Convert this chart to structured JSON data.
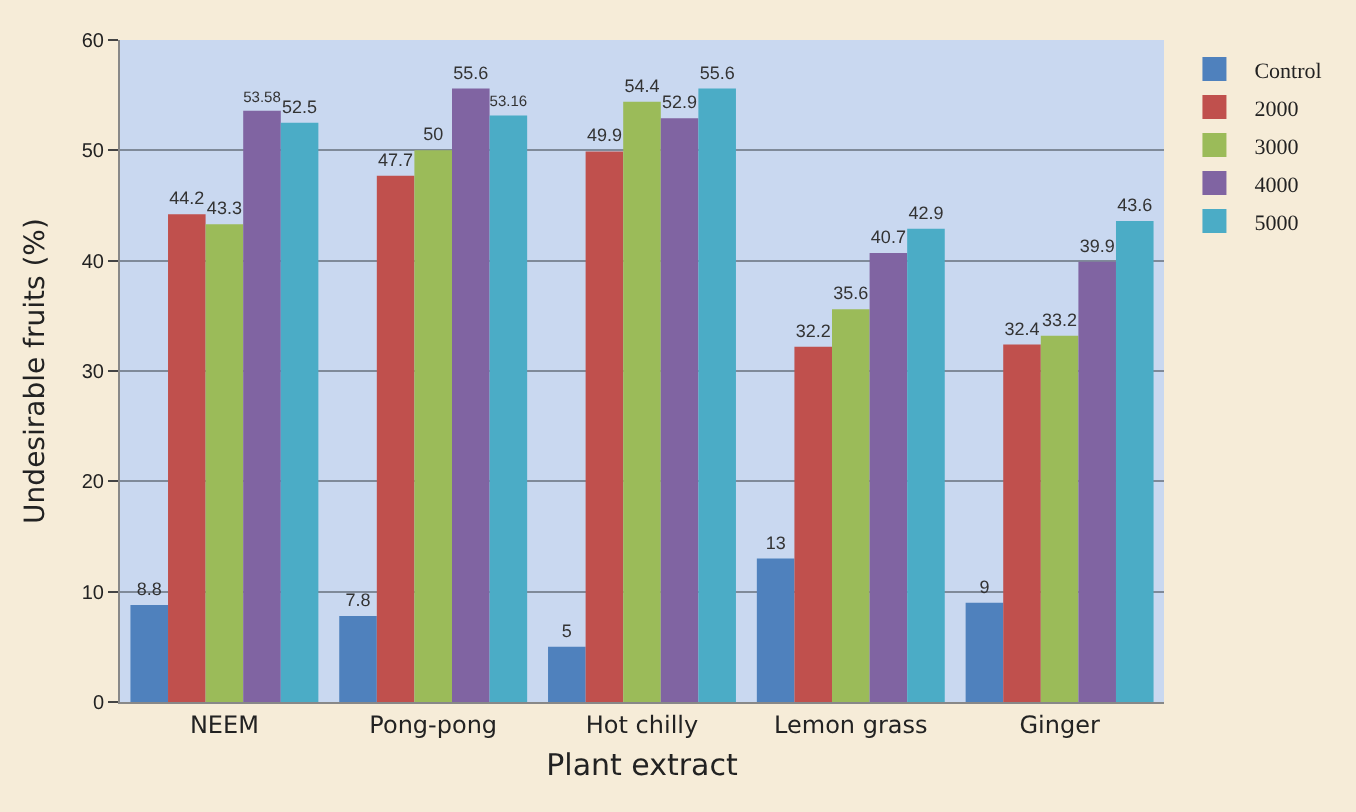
{
  "chart_data": {
    "type": "bar",
    "xlabel": "Plant extract",
    "ylabel": "Undesirable fruits (%)",
    "categories": [
      "NEEM",
      "Pong-pong",
      "Hot chilly",
      "Lemon grass",
      "Ginger"
    ],
    "series": [
      {
        "name": "Control",
        "color": "#4f81bd",
        "values": [
          8.8,
          7.8,
          5,
          13,
          9
        ]
      },
      {
        "name": "2000",
        "color": "#c0504d",
        "values": [
          44.2,
          47.7,
          49.9,
          32.2,
          32.4
        ]
      },
      {
        "name": "3000",
        "color": "#9bbb59",
        "values": [
          43.3,
          50,
          54.4,
          35.6,
          33.2
        ]
      },
      {
        "name": "4000",
        "color": "#8064a2",
        "values": [
          53.58,
          55.6,
          52.9,
          40.7,
          39.9
        ]
      },
      {
        "name": "5000",
        "color": "#4bacc6",
        "values": [
          52.5,
          53.16,
          55.6,
          42.9,
          43.6
        ]
      }
    ],
    "ylim": [
      0,
      60
    ],
    "yticks": [
      0,
      10,
      20,
      30,
      40,
      50,
      60
    ],
    "grid": "y",
    "legend": "top right",
    "data_labels": true
  }
}
